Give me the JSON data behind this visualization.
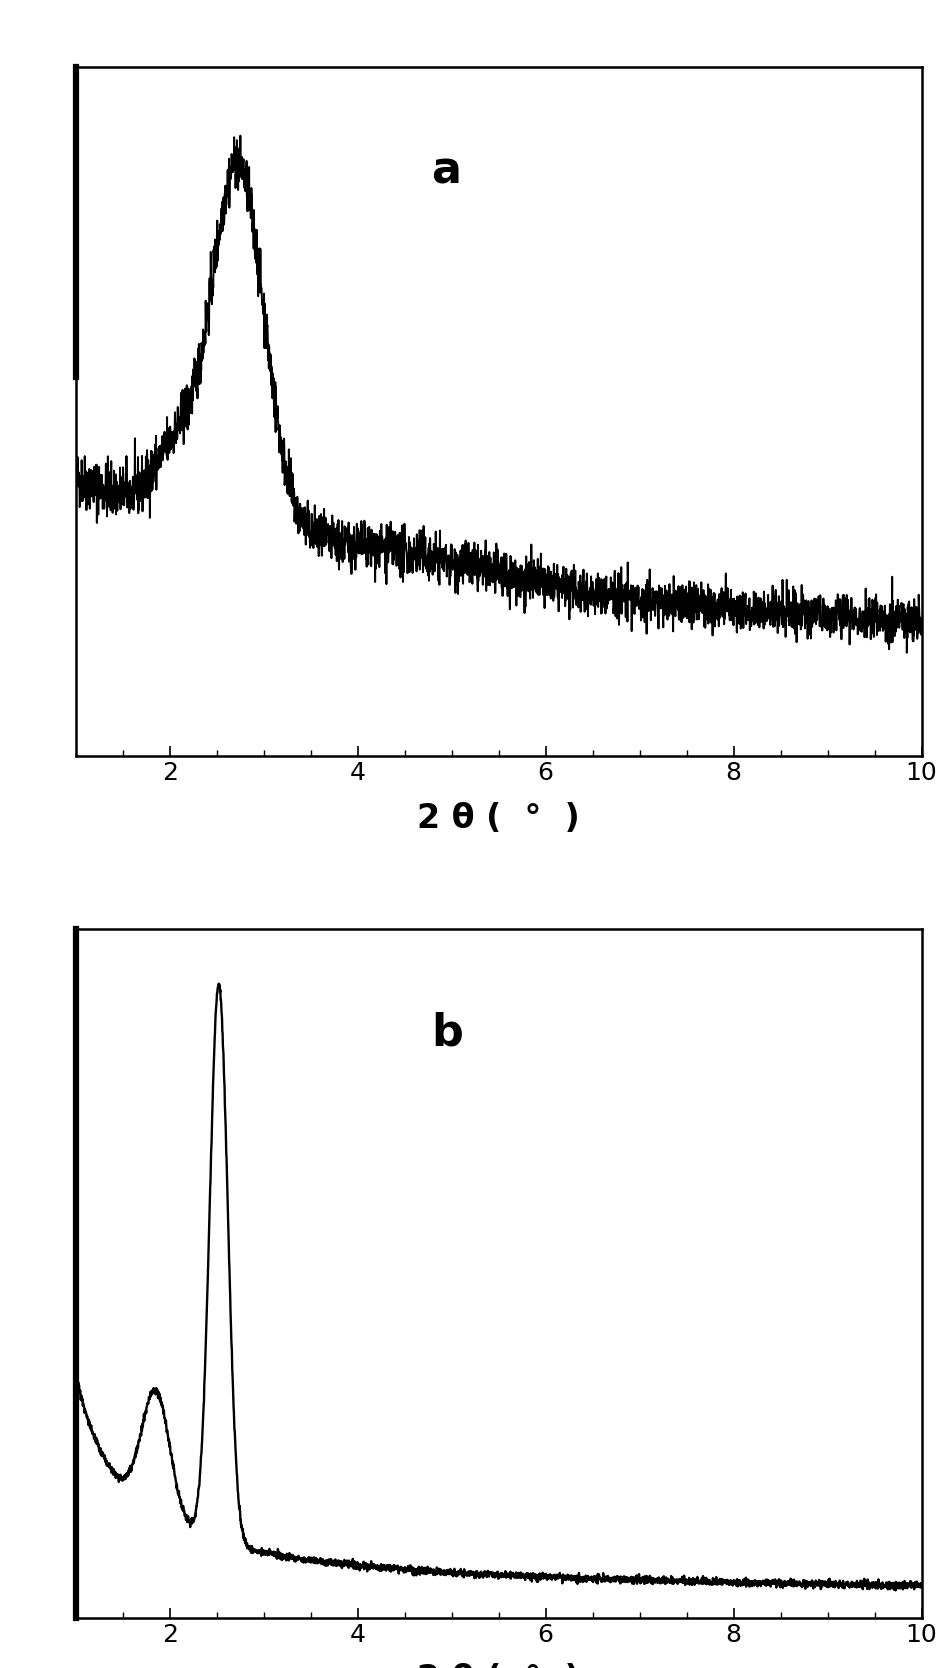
{
  "xlabel": "2 θ (  °  )",
  "xlabel_fontsize": 24,
  "tick_fontsize": 18,
  "label_a": "a",
  "label_b": "b",
  "label_fontsize": 32,
  "xlim": [
    1.0,
    10.0
  ],
  "xticks": [
    2,
    4,
    6,
    8,
    10
  ],
  "background_color": "#ffffff",
  "line_color": "#000000",
  "line_width": 1.4,
  "fig_width": 9.5,
  "fig_height": 16.68
}
